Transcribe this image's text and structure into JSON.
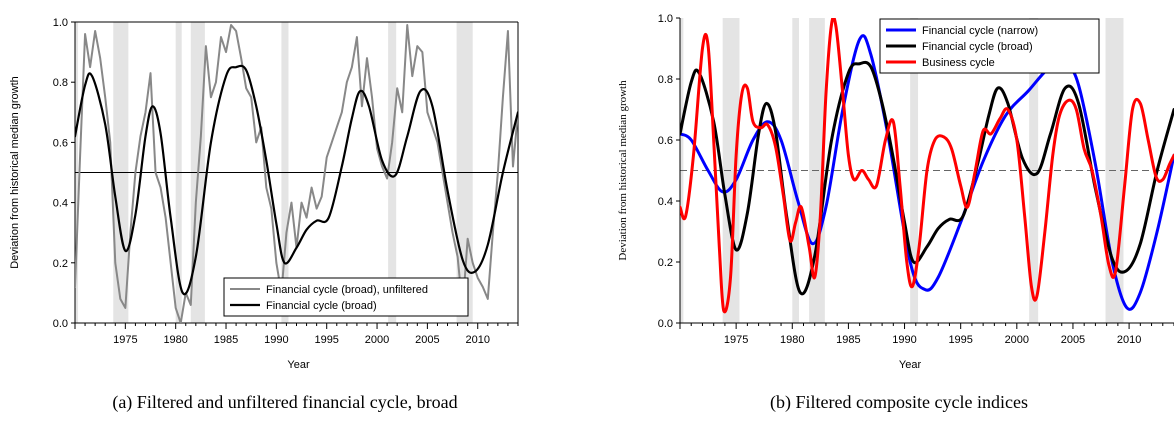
{
  "chart_data": [
    {
      "type": "line",
      "caption": "(a) Filtered and unfiltered financial cycle, broad",
      "xlabel": "Year",
      "ylabel": "Deviation from historical median growth",
      "xlim": [
        1970,
        2014
      ],
      "ylim": [
        0,
        1
      ],
      "xticks": [
        "1975",
        "1980",
        "1985",
        "1990",
        "1995",
        "2000",
        "2005",
        "2010"
      ],
      "yticks": [
        "0.0",
        "0.2",
        "0.4",
        "0.6",
        "0.8",
        "1.0"
      ],
      "reference_line": 0.5,
      "shaded_periods": [
        [
          1970,
          1970.3
        ],
        [
          1973.8,
          1975.3
        ],
        [
          1980.0,
          1980.6
        ],
        [
          1981.5,
          1982.9
        ],
        [
          1990.5,
          1991.2
        ],
        [
          2001.1,
          2001.9
        ],
        [
          2007.9,
          2009.5
        ]
      ],
      "legend_position": "bottom-right",
      "series": [
        {
          "name": "Financial cycle (broad), unfiltered",
          "color": "#888888",
          "x": [
            1970,
            1970.5,
            1971,
            1971.5,
            1972,
            1972.5,
            1973,
            1973.5,
            1974,
            1974.5,
            1975,
            1975.5,
            1976,
            1976.5,
            1977,
            1977.5,
            1978,
            1978.5,
            1979,
            1979.5,
            1980,
            1980.5,
            1981,
            1981.5,
            1982,
            1982.5,
            1983,
            1983.5,
            1984,
            1984.5,
            1985,
            1985.5,
            1986,
            1986.5,
            1987,
            1987.5,
            1988,
            1988.5,
            1989,
            1989.5,
            1990,
            1990.5,
            1991,
            1991.5,
            1992,
            1992.5,
            1993,
            1993.5,
            1994,
            1994.5,
            1995,
            1995.5,
            1996,
            1996.5,
            1997,
            1997.5,
            1998,
            1998.5,
            1999,
            1999.5,
            2000,
            2000.5,
            2001,
            2001.5,
            2002,
            2002.5,
            2003,
            2003.5,
            2004,
            2004.5,
            2005,
            2005.5,
            2006,
            2006.5,
            2007,
            2007.5,
            2008,
            2008.5,
            2009,
            2009.5,
            2010,
            2010.5,
            2011,
            2011.5,
            2012,
            2012.5,
            2013,
            2013.5,
            2014
          ],
          "y": [
            0.12,
            0.55,
            0.96,
            0.85,
            0.97,
            0.88,
            0.75,
            0.6,
            0.2,
            0.08,
            0.05,
            0.3,
            0.5,
            0.62,
            0.7,
            0.83,
            0.5,
            0.45,
            0.35,
            0.2,
            0.05,
            0.0,
            0.1,
            0.06,
            0.4,
            0.62,
            0.92,
            0.75,
            0.8,
            0.95,
            0.9,
            0.99,
            0.97,
            0.88,
            0.78,
            0.75,
            0.6,
            0.65,
            0.45,
            0.38,
            0.2,
            0.1,
            0.3,
            0.4,
            0.25,
            0.4,
            0.35,
            0.45,
            0.38,
            0.42,
            0.55,
            0.6,
            0.65,
            0.7,
            0.8,
            0.85,
            0.95,
            0.72,
            0.88,
            0.75,
            0.58,
            0.52,
            0.48,
            0.6,
            0.78,
            0.7,
            0.99,
            0.82,
            0.92,
            0.9,
            0.7,
            0.65,
            0.6,
            0.5,
            0.4,
            0.3,
            0.22,
            0.05,
            0.28,
            0.2,
            0.15,
            0.12,
            0.08,
            0.3,
            0.5,
            0.75,
            0.97,
            0.52,
            0.7
          ]
        },
        {
          "name": "Financial cycle (broad)",
          "color": "#000000",
          "x": [
            1970,
            1971,
            1971.7,
            1973,
            1974,
            1975,
            1976,
            1977,
            1977.7,
            1978.5,
            1979.5,
            1980.7,
            1982,
            1983.5,
            1985,
            1986,
            1987,
            1988,
            1989,
            1990,
            1990.8,
            1992,
            1993,
            1994,
            1995.2,
            1996.5,
            1997.5,
            1998.3,
            1999.2,
            2000.5,
            2001.8,
            2003,
            2004.3,
            2005.5,
            2007,
            2008.5,
            2009.7,
            2011,
            2012.5,
            2014
          ],
          "y": [
            0.62,
            0.79,
            0.82,
            0.66,
            0.42,
            0.24,
            0.36,
            0.62,
            0.72,
            0.63,
            0.35,
            0.1,
            0.22,
            0.6,
            0.82,
            0.85,
            0.84,
            0.72,
            0.54,
            0.33,
            0.2,
            0.25,
            0.31,
            0.34,
            0.35,
            0.52,
            0.68,
            0.77,
            0.72,
            0.54,
            0.49,
            0.62,
            0.77,
            0.72,
            0.44,
            0.21,
            0.17,
            0.26,
            0.5,
            0.7
          ]
        }
      ]
    },
    {
      "type": "line",
      "caption": "(b) Filtered composite cycle indices",
      "xlabel": "Year",
      "ylabel": "Deviation from historical median growth",
      "xlim": [
        1970,
        2014
      ],
      "ylim": [
        0,
        1
      ],
      "xticks": [
        "1975",
        "1980",
        "1985",
        "1990",
        "1995",
        "2000",
        "2005",
        "2010"
      ],
      "yticks": [
        "0.0",
        "0.2",
        "0.4",
        "0.6",
        "0.8",
        "1.0"
      ],
      "reference_line": 0.5,
      "shaded_periods": [
        [
          1970,
          1970.3
        ],
        [
          1973.8,
          1975.3
        ],
        [
          1980.0,
          1980.6
        ],
        [
          1981.5,
          1982.9
        ],
        [
          1990.5,
          1991.2
        ],
        [
          2001.1,
          2001.9
        ],
        [
          2007.9,
          2009.5
        ]
      ],
      "legend_position": "top",
      "series": [
        {
          "name": "Financial cycle (narrow)",
          "color": "#0000ff",
          "x": [
            1970,
            1971,
            1972.5,
            1973.8,
            1975,
            1976.5,
            1977.8,
            1979,
            1980.5,
            1981.8,
            1983,
            1984.5,
            1986,
            1987,
            1988.5,
            1990.5,
            1991.8,
            1993,
            1995,
            1997,
            1999,
            2001,
            2003,
            2004.5,
            2005.5,
            2007,
            2008.5,
            2009.8,
            2011,
            2012.5,
            2014
          ],
          "y": [
            0.62,
            0.6,
            0.5,
            0.43,
            0.47,
            0.6,
            0.66,
            0.6,
            0.4,
            0.26,
            0.38,
            0.7,
            0.93,
            0.88,
            0.62,
            0.2,
            0.11,
            0.15,
            0.33,
            0.53,
            0.68,
            0.76,
            0.84,
            0.84,
            0.78,
            0.52,
            0.2,
            0.05,
            0.1,
            0.3,
            0.55
          ]
        },
        {
          "name": "Financial cycle (broad)",
          "color": "#000000",
          "x": [
            1970,
            1971,
            1971.7,
            1973,
            1974,
            1975,
            1976,
            1977,
            1977.7,
            1978.5,
            1979.5,
            1980.7,
            1982,
            1983.5,
            1985,
            1986,
            1987,
            1988,
            1989,
            1990,
            1990.8,
            1992,
            1993,
            1994,
            1995.2,
            1996.5,
            1997.5,
            1998.3,
            1999.2,
            2000.5,
            2001.8,
            2003,
            2004.3,
            2005.5,
            2007,
            2008.5,
            2009.7,
            2011,
            2012.5,
            2014
          ],
          "y": [
            0.62,
            0.79,
            0.82,
            0.66,
            0.42,
            0.24,
            0.36,
            0.62,
            0.72,
            0.63,
            0.35,
            0.1,
            0.22,
            0.6,
            0.82,
            0.85,
            0.84,
            0.72,
            0.54,
            0.33,
            0.2,
            0.25,
            0.31,
            0.34,
            0.35,
            0.52,
            0.68,
            0.77,
            0.72,
            0.54,
            0.49,
            0.62,
            0.77,
            0.72,
            0.44,
            0.21,
            0.17,
            0.26,
            0.5,
            0.7
          ]
        },
        {
          "name": "Business cycle",
          "color": "#ff0000",
          "x": [
            1970,
            1970.5,
            1971.2,
            1972,
            1972.5,
            1973,
            1973.5,
            1973.9,
            1974.5,
            1975,
            1975.5,
            1976,
            1976.5,
            1977.2,
            1977.8,
            1978.5,
            1979.2,
            1979.8,
            1980.3,
            1980.8,
            1981.5,
            1982,
            1982.5,
            1983,
            1983.5,
            1983.9,
            1984.5,
            1985,
            1985.5,
            1986.2,
            1986.8,
            1987.5,
            1988.3,
            1989,
            1989.6,
            1990.2,
            1990.7,
            1991.3,
            1992,
            1992.7,
            1993.5,
            1994.2,
            1995,
            1995.6,
            1996.3,
            1997,
            1997.7,
            1998.5,
            1999.2,
            2000,
            2000.7,
            2001.3,
            2001.8,
            2002.5,
            2003.2,
            2003.8,
            2004.6,
            2005.3,
            2006,
            2006.7,
            2007.5,
            2008.2,
            2008.8,
            2009.6,
            2010.3,
            2011,
            2011.7,
            2012.4,
            2013,
            2013.6,
            2014
          ],
          "y": [
            0.38,
            0.35,
            0.55,
            0.9,
            0.91,
            0.6,
            0.25,
            0.04,
            0.15,
            0.55,
            0.75,
            0.77,
            0.66,
            0.64,
            0.65,
            0.58,
            0.42,
            0.27,
            0.33,
            0.38,
            0.25,
            0.15,
            0.35,
            0.75,
            0.98,
            0.97,
            0.75,
            0.55,
            0.47,
            0.5,
            0.47,
            0.45,
            0.6,
            0.66,
            0.45,
            0.2,
            0.12,
            0.25,
            0.5,
            0.6,
            0.61,
            0.57,
            0.45,
            0.38,
            0.5,
            0.63,
            0.62,
            0.67,
            0.7,
            0.6,
            0.35,
            0.12,
            0.09,
            0.3,
            0.55,
            0.68,
            0.73,
            0.7,
            0.57,
            0.5,
            0.35,
            0.19,
            0.17,
            0.45,
            0.7,
            0.72,
            0.6,
            0.48,
            0.47,
            0.52,
            0.55
          ]
        }
      ]
    }
  ]
}
